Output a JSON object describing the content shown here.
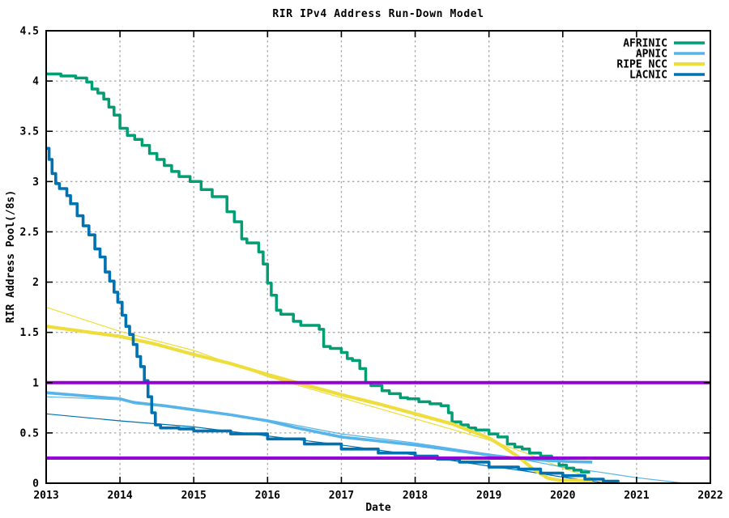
{
  "labels": {
    "title": "RIR IPv4 Address Run-Down Model",
    "xlabel": "Date",
    "ylabel": "RIR Address Pool(/8s)"
  },
  "colors": {
    "afrinic": "#009e73",
    "apnic": "#56b4e9",
    "ripe": "#eedd3c",
    "lacnic": "#0072b2",
    "threshold": "#9400d3",
    "grid": "#a8a8a8",
    "axis": "#000000"
  },
  "chart_data": {
    "type": "line",
    "title": "RIR IPv4 Address Run-Down Model",
    "xlabel": "Date",
    "ylabel": "RIR Address Pool(/8s)",
    "xlim": [
      2013,
      2022
    ],
    "ylim": [
      0,
      4.5
    ],
    "x_ticks": [
      {
        "v": 2013,
        "label": "2013"
      },
      {
        "v": 2014,
        "label": "2014"
      },
      {
        "v": 2015,
        "label": "2015"
      },
      {
        "v": 2016,
        "label": "2016"
      },
      {
        "v": 2017,
        "label": "2017"
      },
      {
        "v": 2018,
        "label": "2018"
      },
      {
        "v": 2019,
        "label": "2019"
      },
      {
        "v": 2020,
        "label": "2020"
      },
      {
        "v": 2021,
        "label": "2021"
      },
      {
        "v": 2022,
        "label": "2022"
      }
    ],
    "y_ticks": [
      {
        "v": 0,
        "label": "0"
      },
      {
        "v": 0.5,
        "label": "0.5"
      },
      {
        "v": 1,
        "label": "1"
      },
      {
        "v": 1.5,
        "label": "1.5"
      },
      {
        "v": 2,
        "label": "2"
      },
      {
        "v": 2.5,
        "label": "2.5"
      },
      {
        "v": 3,
        "label": "3"
      },
      {
        "v": 3.5,
        "label": "3.5"
      },
      {
        "v": 4,
        "label": "4"
      },
      {
        "v": 4.5,
        "label": "4.5"
      }
    ],
    "grid": true,
    "legend_position": "top-right",
    "thresholds": [
      {
        "y": 1.0,
        "color": "#9400d3",
        "width": 4
      },
      {
        "y": 0.25,
        "color": "#9400d3",
        "width": 4
      }
    ],
    "series": [
      {
        "name": "RIPE NCC model",
        "color": "#eedd3c",
        "width": 1.2,
        "style": "line",
        "legend": false,
        "points": [
          [
            2013,
            1.75
          ],
          [
            2014,
            1.51
          ],
          [
            2015,
            1.32
          ],
          [
            2016,
            1.06
          ],
          [
            2017,
            0.85
          ],
          [
            2018,
            0.64
          ],
          [
            2019,
            0.43
          ],
          [
            2019.5,
            0.3
          ],
          [
            2020,
            0.15
          ],
          [
            2020.4,
            0.05
          ],
          [
            2020.65,
            0
          ]
        ]
      },
      {
        "name": "APNIC model",
        "color": "#56b4e9",
        "width": 1.2,
        "style": "line",
        "legend": false,
        "points": [
          [
            2013,
            0.86
          ],
          [
            2014,
            0.83
          ],
          [
            2015,
            0.74
          ],
          [
            2016,
            0.63
          ],
          [
            2016.5,
            0.56
          ],
          [
            2017,
            0.49
          ],
          [
            2018,
            0.4
          ],
          [
            2019,
            0.29
          ],
          [
            2019.5,
            0.23
          ],
          [
            2020,
            0.16
          ],
          [
            2020.5,
            0.11
          ],
          [
            2021,
            0.055
          ],
          [
            2021.65,
            0
          ]
        ]
      },
      {
        "name": "LACNIC model",
        "color": "#0072b2",
        "width": 1.2,
        "style": "line",
        "legend": false,
        "points": [
          [
            2013,
            0.69
          ],
          [
            2014,
            0.62
          ],
          [
            2015,
            0.56
          ],
          [
            2016,
            0.47
          ],
          [
            2017,
            0.38
          ],
          [
            2018,
            0.28
          ],
          [
            2019,
            0.17
          ],
          [
            2019.5,
            0.12
          ],
          [
            2020,
            0.06
          ],
          [
            2020.6,
            0
          ]
        ]
      },
      {
        "name": "AFRINIC",
        "color": "#009e73",
        "width": 3.5,
        "style": "step",
        "legend": true,
        "points": [
          [
            2013,
            4.07
          ],
          [
            2013.2,
            4.05
          ],
          [
            2013.4,
            4.03
          ],
          [
            2013.55,
            3.99
          ],
          [
            2013.62,
            3.92
          ],
          [
            2013.7,
            3.88
          ],
          [
            2013.78,
            3.82
          ],
          [
            2013.85,
            3.74
          ],
          [
            2013.92,
            3.66
          ],
          [
            2014,
            3.53
          ],
          [
            2014.1,
            3.46
          ],
          [
            2014.2,
            3.42
          ],
          [
            2014.3,
            3.36
          ],
          [
            2014.4,
            3.28
          ],
          [
            2014.5,
            3.22
          ],
          [
            2014.6,
            3.16
          ],
          [
            2014.7,
            3.1
          ],
          [
            2014.8,
            3.05
          ],
          [
            2014.95,
            3.0
          ],
          [
            2015.1,
            2.92
          ],
          [
            2015.25,
            2.85
          ],
          [
            2015.45,
            2.7
          ],
          [
            2015.55,
            2.6
          ],
          [
            2015.65,
            2.43
          ],
          [
            2015.72,
            2.39
          ],
          [
            2015.88,
            2.3
          ],
          [
            2015.94,
            2.18
          ],
          [
            2016,
            1.99
          ],
          [
            2016.05,
            1.87
          ],
          [
            2016.12,
            1.72
          ],
          [
            2016.18,
            1.68
          ],
          [
            2016.35,
            1.61
          ],
          [
            2016.45,
            1.57
          ],
          [
            2016.7,
            1.53
          ],
          [
            2016.76,
            1.36
          ],
          [
            2016.85,
            1.34
          ],
          [
            2017,
            1.3
          ],
          [
            2017.08,
            1.24
          ],
          [
            2017.15,
            1.22
          ],
          [
            2017.25,
            1.14
          ],
          [
            2017.33,
            1.0
          ],
          [
            2017.4,
            0.97
          ],
          [
            2017.55,
            0.92
          ],
          [
            2017.65,
            0.89
          ],
          [
            2017.8,
            0.85
          ],
          [
            2017.9,
            0.84
          ],
          [
            2018.05,
            0.81
          ],
          [
            2018.2,
            0.79
          ],
          [
            2018.35,
            0.77
          ],
          [
            2018.45,
            0.7
          ],
          [
            2018.5,
            0.61
          ],
          [
            2018.62,
            0.58
          ],
          [
            2018.72,
            0.55
          ],
          [
            2018.82,
            0.53
          ],
          [
            2019,
            0.49
          ],
          [
            2019.12,
            0.46
          ],
          [
            2019.25,
            0.39
          ],
          [
            2019.35,
            0.36
          ],
          [
            2019.45,
            0.34
          ],
          [
            2019.55,
            0.3
          ],
          [
            2019.7,
            0.27
          ],
          [
            2019.85,
            0.24
          ],
          [
            2019.95,
            0.18
          ],
          [
            2020.05,
            0.15
          ],
          [
            2020.15,
            0.13
          ],
          [
            2020.25,
            0.11
          ],
          [
            2020.37,
            0.11
          ]
        ]
      },
      {
        "name": "APNIC",
        "color": "#56b4e9",
        "width": 3.6,
        "style": "line",
        "legend": true,
        "points": [
          [
            2013,
            0.9
          ],
          [
            2013.5,
            0.87
          ],
          [
            2014,
            0.84
          ],
          [
            2014.2,
            0.8
          ],
          [
            2014.6,
            0.77
          ],
          [
            2015,
            0.73
          ],
          [
            2015.5,
            0.68
          ],
          [
            2016,
            0.62
          ],
          [
            2016.4,
            0.55
          ],
          [
            2017,
            0.46
          ],
          [
            2017.5,
            0.42
          ],
          [
            2018,
            0.38
          ],
          [
            2018.5,
            0.33
          ],
          [
            2019,
            0.28
          ],
          [
            2019.4,
            0.245
          ],
          [
            2019.8,
            0.225
          ],
          [
            2020.1,
            0.215
          ],
          [
            2020.4,
            0.21
          ]
        ]
      },
      {
        "name": "RIPE NCC",
        "color": "#eedd3c",
        "width": 4.2,
        "style": "line",
        "legend": true,
        "points": [
          [
            2013,
            1.56
          ],
          [
            2013.5,
            1.51
          ],
          [
            2014,
            1.46
          ],
          [
            2014.5,
            1.38
          ],
          [
            2015,
            1.28
          ],
          [
            2015.5,
            1.19
          ],
          [
            2016,
            1.08
          ],
          [
            2016.4,
            1.0
          ],
          [
            2017,
            0.88
          ],
          [
            2017.5,
            0.79
          ],
          [
            2018,
            0.69
          ],
          [
            2018.5,
            0.59
          ],
          [
            2019,
            0.45
          ],
          [
            2019.2,
            0.36
          ],
          [
            2019.42,
            0.25
          ],
          [
            2019.6,
            0.14
          ],
          [
            2019.8,
            0.05
          ],
          [
            2019.95,
            0.03
          ],
          [
            2020.4,
            0.025
          ]
        ]
      },
      {
        "name": "LACNIC",
        "color": "#0072b2",
        "width": 3.6,
        "style": "step",
        "legend": true,
        "points": [
          [
            2013,
            3.33
          ],
          [
            2013.04,
            3.22
          ],
          [
            2013.08,
            3.08
          ],
          [
            2013.13,
            2.98
          ],
          [
            2013.18,
            2.93
          ],
          [
            2013.28,
            2.86
          ],
          [
            2013.33,
            2.78
          ],
          [
            2013.42,
            2.66
          ],
          [
            2013.5,
            2.56
          ],
          [
            2013.58,
            2.47
          ],
          [
            2013.66,
            2.33
          ],
          [
            2013.73,
            2.25
          ],
          [
            2013.8,
            2.1
          ],
          [
            2013.86,
            2.01
          ],
          [
            2013.92,
            1.9
          ],
          [
            2013.97,
            1.8
          ],
          [
            2014.03,
            1.67
          ],
          [
            2014.08,
            1.56
          ],
          [
            2014.13,
            1.48
          ],
          [
            2014.18,
            1.38
          ],
          [
            2014.23,
            1.26
          ],
          [
            2014.28,
            1.16
          ],
          [
            2014.33,
            1.02
          ],
          [
            2014.38,
            0.86
          ],
          [
            2014.43,
            0.7
          ],
          [
            2014.48,
            0.58
          ],
          [
            2014.55,
            0.55
          ],
          [
            2014.8,
            0.54
          ],
          [
            2015,
            0.52
          ],
          [
            2015.5,
            0.49
          ],
          [
            2016,
            0.44
          ],
          [
            2016.5,
            0.39
          ],
          [
            2017,
            0.34
          ],
          [
            2017.5,
            0.3
          ],
          [
            2018,
            0.27
          ],
          [
            2018.3,
            0.24
          ],
          [
            2018.6,
            0.21
          ],
          [
            2019,
            0.16
          ],
          [
            2019.4,
            0.14
          ],
          [
            2019.7,
            0.1
          ],
          [
            2020,
            0.075
          ],
          [
            2020.3,
            0.04
          ],
          [
            2020.55,
            0.02
          ],
          [
            2020.75,
            0.01
          ]
        ]
      }
    ],
    "legend_order": [
      "AFRINIC",
      "APNIC",
      "RIPE NCC",
      "LACNIC"
    ]
  }
}
